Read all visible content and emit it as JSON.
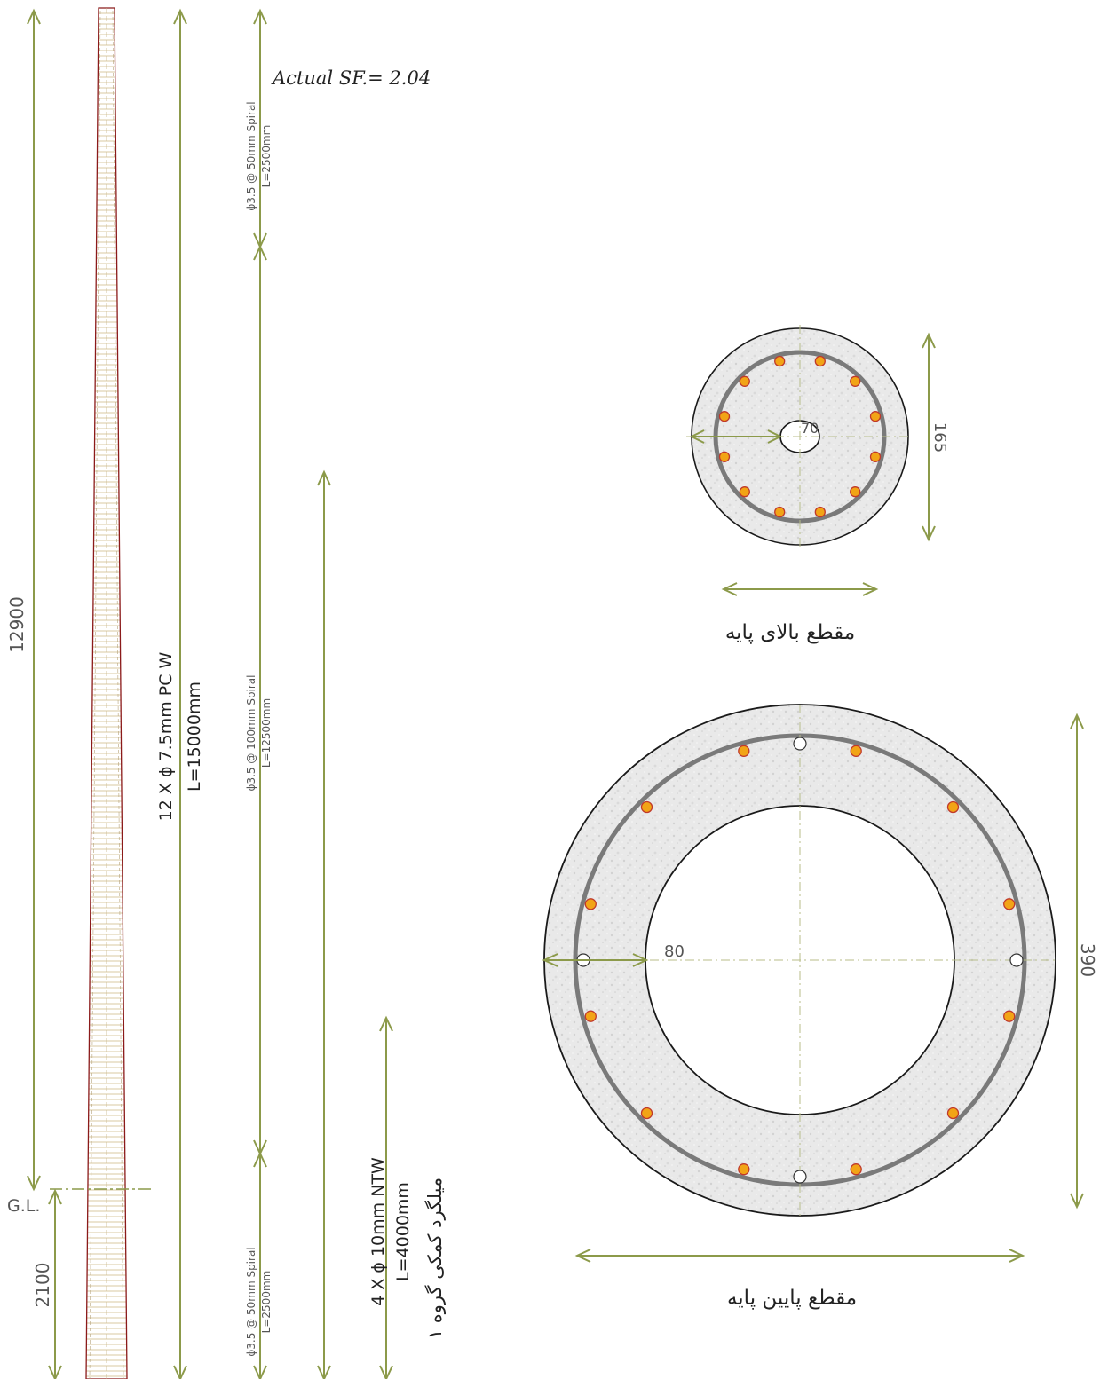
{
  "annotations": {
    "safety_factor": "Actual SF.=  2.04",
    "overall_height": "12900",
    "embedment_depth": "2100",
    "ground_level": "G.L.",
    "main_rebar_line1": "12 X ϕ 7.5mm PC W",
    "main_rebar_line2": "L=15000mm",
    "spiral_top_line1": "ϕ3.5 @ 50mm Spiral",
    "spiral_top_line2": "L=2500mm",
    "spiral_mid_line1": "ϕ3.5 @ 100mm Spiral",
    "spiral_mid_line2": "L=12500mm",
    "spiral_bottom_line1": "ϕ3.5 @ 50mm Spiral",
    "spiral_bottom_line2": "L=2500mm",
    "aux_rebar_line1": "4 X ϕ 10mm NTW",
    "aux_rebar_line2": "L=4000mm",
    "aux_rebar_line3": "میلگرد کمکی گروه ۱"
  },
  "top_section": {
    "title": "مقطع بالای پایه",
    "diameter_label": "165",
    "wall_label": "70"
  },
  "bottom_section": {
    "title": "مقطع پایین پایه",
    "diameter_label": "390",
    "wall_label": "80"
  },
  "colors": {
    "dimension": "#8c9a4a",
    "rebar_fill": "#f2a416",
    "rebar_stroke": "#c0392b",
    "pole_outline": "#8b1a1a",
    "concrete": "#e6e6e6"
  }
}
